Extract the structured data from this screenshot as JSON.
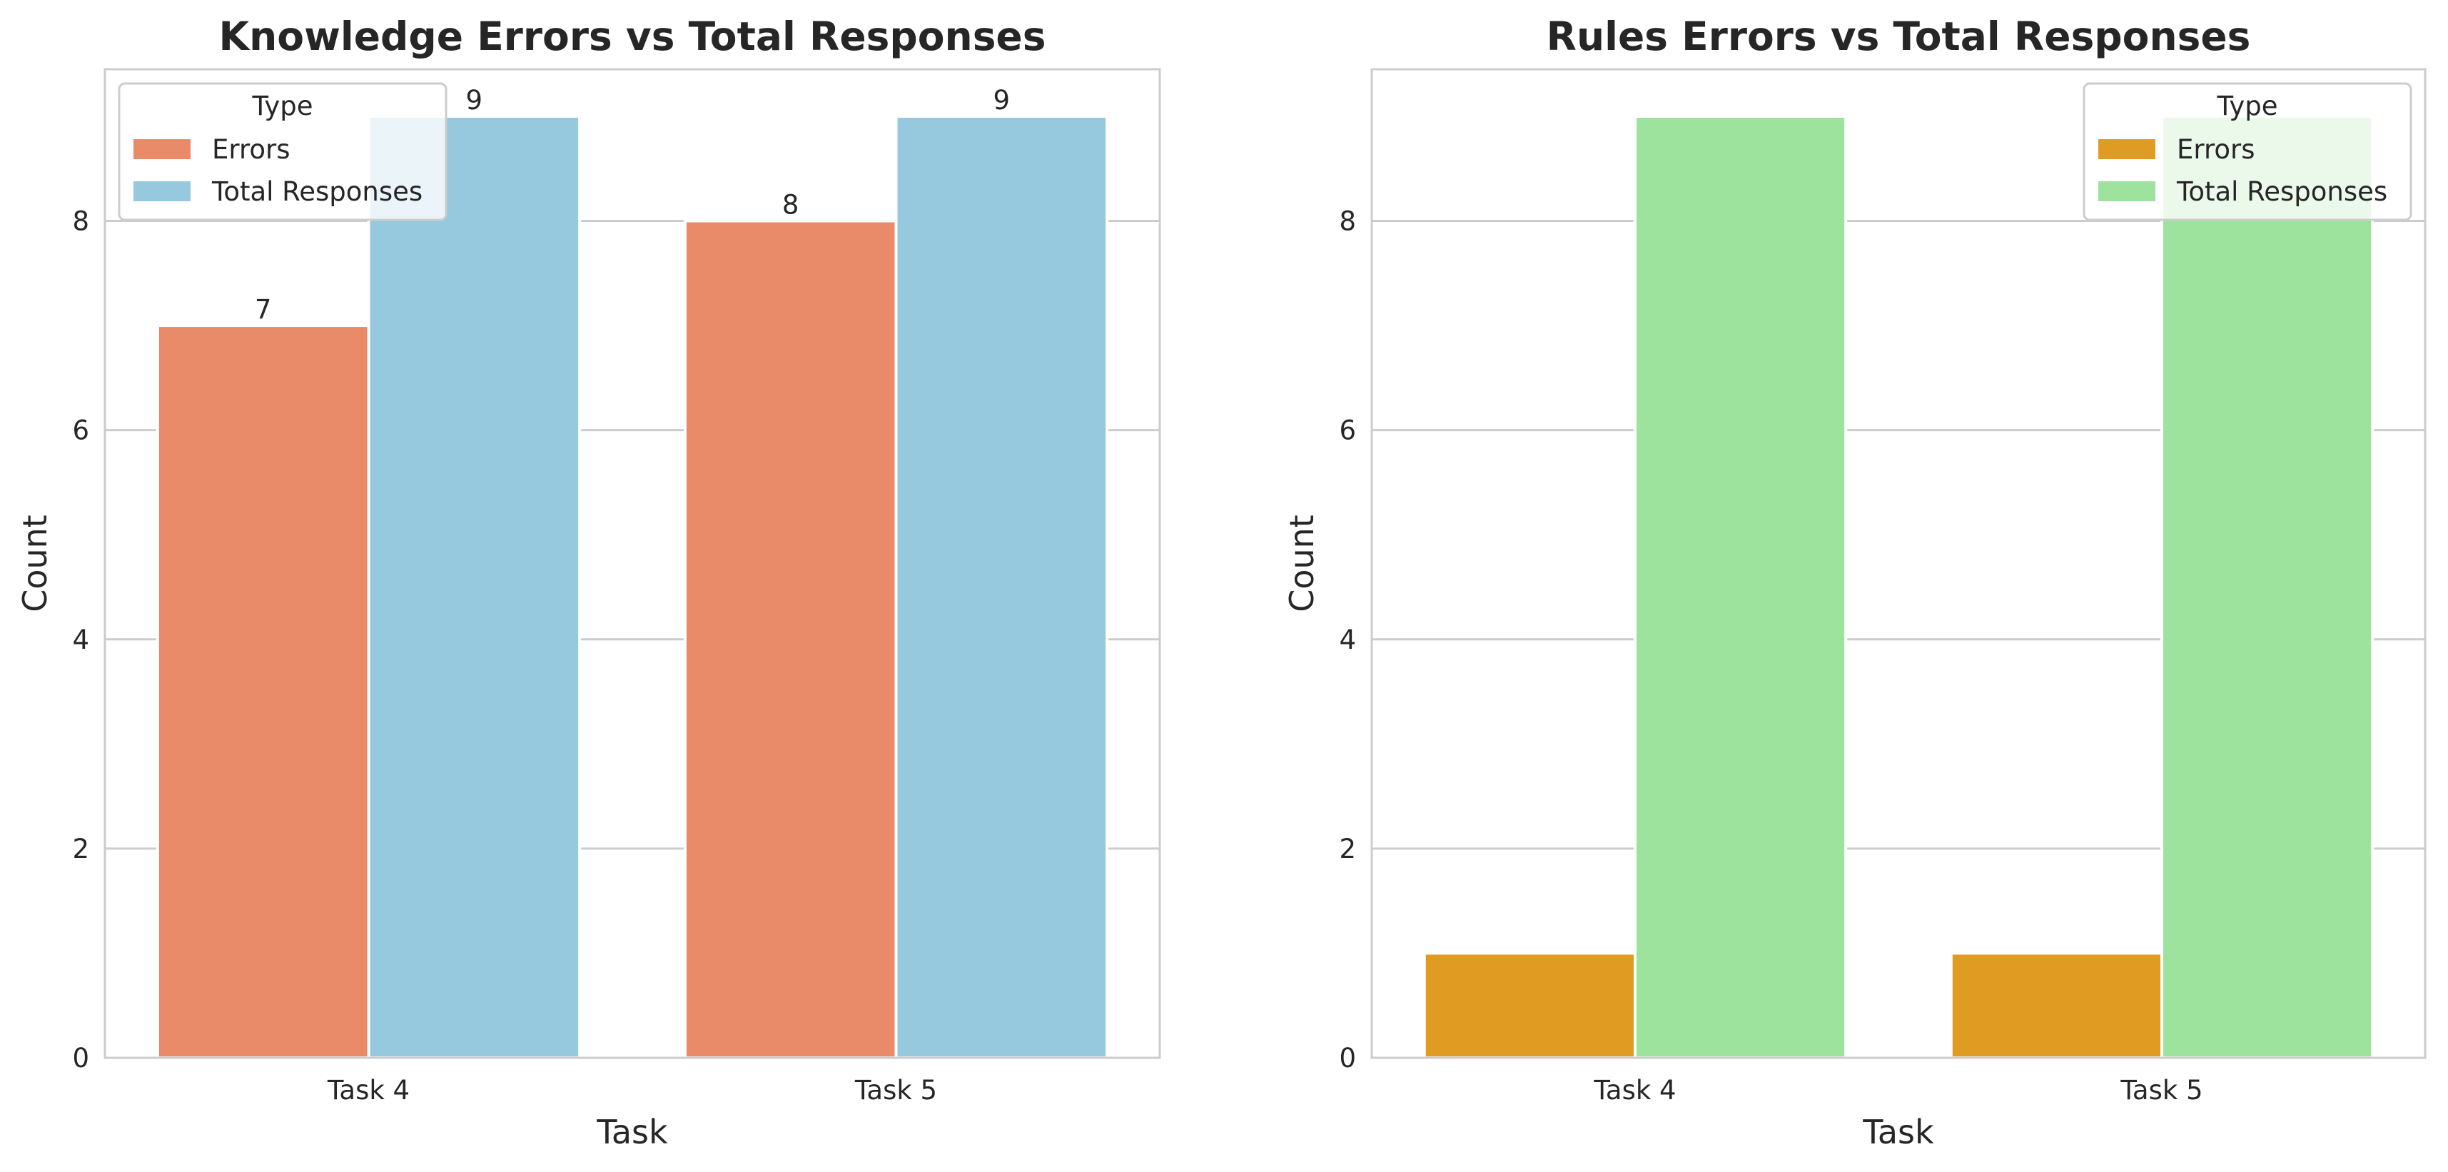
{
  "colors": {
    "knowledge_errors": "#E98A68",
    "knowledge_total": "#97C9DE",
    "rules_errors": "#E09C22",
    "rules_total": "#9DE29D",
    "grid": "#CCCCCC",
    "spine": "#CCCCCC",
    "text": "#262626"
  },
  "chart_data": [
    {
      "type": "bar",
      "title": "Knowledge Errors vs Total Responses",
      "xlabel": "Task",
      "ylabel": "Count",
      "categories": [
        "Task 4",
        "Task 5"
      ],
      "series": [
        {
          "name": "Errors",
          "values": [
            7,
            8
          ],
          "color": "#E98A68"
        },
        {
          "name": "Total Responses",
          "values": [
            9,
            9
          ],
          "color": "#97C9DE"
        }
      ],
      "data_labels": [
        [
          "7",
          "8"
        ],
        [
          "9",
          "9"
        ]
      ],
      "ylim": [
        0,
        9.45
      ],
      "yticks": [
        0,
        2,
        4,
        6,
        8
      ],
      "ytick_labels": [
        "0",
        "2",
        "4",
        "6",
        "8"
      ],
      "grid": true,
      "legend": {
        "title": "Type",
        "position": "upper-left"
      }
    },
    {
      "type": "bar",
      "title": "Rules Errors vs Total Responses",
      "xlabel": "Task",
      "ylabel": "Count",
      "categories": [
        "Task 4",
        "Task 5"
      ],
      "series": [
        {
          "name": "Errors",
          "values": [
            1,
            1
          ],
          "color": "#E09C22"
        },
        {
          "name": "Total Responses",
          "values": [
            9,
            9
          ],
          "color": "#9DE29D"
        }
      ],
      "data_labels": null,
      "ylim": [
        0,
        9.45
      ],
      "yticks": [
        0,
        2,
        4,
        6,
        8
      ],
      "ytick_labels": [
        "0",
        "2",
        "4",
        "6",
        "8"
      ],
      "grid": true,
      "legend": {
        "title": "Type",
        "position": "upper-right"
      }
    }
  ]
}
